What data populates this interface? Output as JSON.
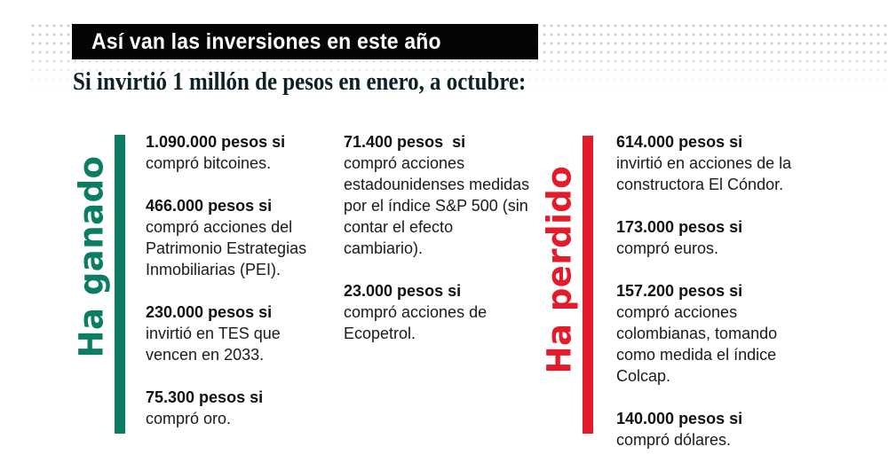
{
  "header": {
    "title": "Así van las inversiones en este año",
    "subtitle": "Si invirtió 1 millón de pesos en enero, a octubre:"
  },
  "colors": {
    "gain": "#0b7d62",
    "loss": "#e41b2b",
    "title_bg": "#050505",
    "subtitle_text": "#0e2127"
  },
  "gain_section": {
    "label": "Ha ganado",
    "columns": [
      [
        {
          "amount": "1.090.000 pesos si",
          "description": "compró bitcoines."
        },
        {
          "amount": "466.000 pesos si",
          "description": "compró acciones del Patrimonio Estrategias Inmobiliarias (PEI)."
        },
        {
          "amount": "230.000 pesos si",
          "description": "invirtió en TES que vencen en 2033."
        },
        {
          "amount": "75.300 pesos si",
          "description": "compró oro."
        }
      ],
      [
        {
          "amount": "71.400 pesos  si",
          "description": "compró acciones estadounidenses medidas por el índice S&P 500 (sin contar el efecto cambiario)."
        },
        {
          "amount": "23.000 pesos si",
          "description": "compró acciones de Ecopetrol."
        }
      ]
    ]
  },
  "loss_section": {
    "label": "Ha perdido",
    "items": [
      {
        "amount": "614.000 pesos si",
        "description": "invirtió en acciones de la constructora El Cóndor."
      },
      {
        "amount": "173.000 pesos si",
        "description": "compró euros."
      },
      {
        "amount": "157.200 pesos si",
        "description": "compró acciones colombianas, tomando como medida el índice Colcap."
      },
      {
        "amount": "140.000 pesos si",
        "description": "compró dólares."
      }
    ]
  }
}
